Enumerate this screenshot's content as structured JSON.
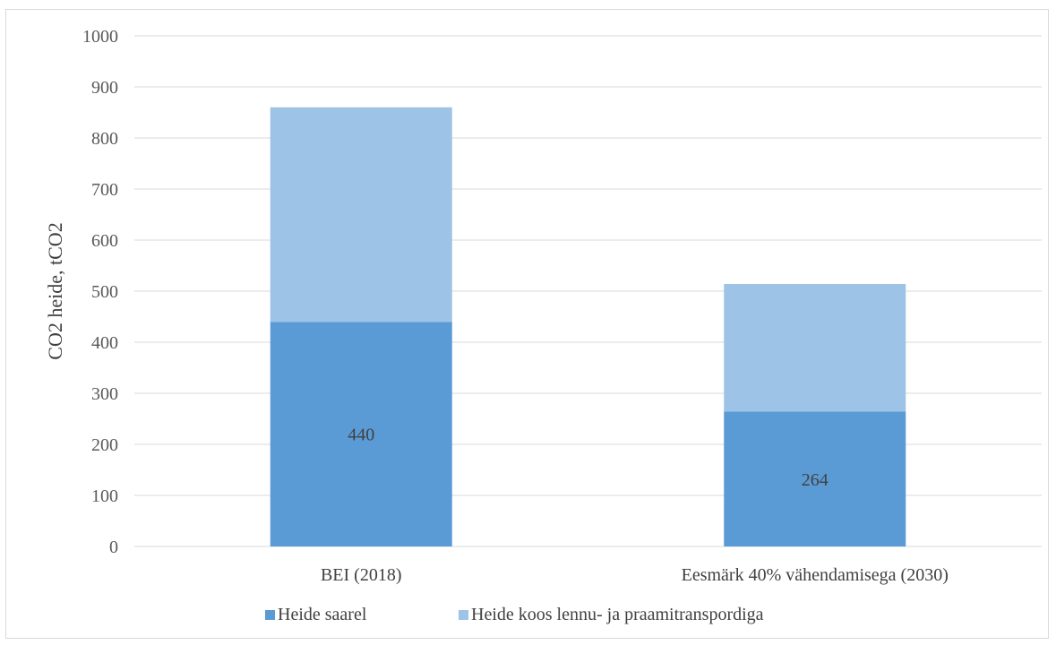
{
  "chart_data": {
    "type": "bar",
    "stacked": true,
    "categories": [
      "BEI (2018)",
      "Eesmärk 40% vähendamisega (2030)"
    ],
    "series": [
      {
        "name": "Heide saarel",
        "values": [
          440,
          264
        ],
        "color": "#5b9bd5",
        "labels": [
          "440",
          "264"
        ]
      },
      {
        "name": "Heide koos lennu- ja praamitranspordiga",
        "values": [
          420,
          250
        ],
        "color": "#9dc3e6"
      }
    ],
    "ylabel": "CO2 heide,  tCO2",
    "ylim": [
      0,
      1000
    ],
    "yticks": [
      0,
      100,
      200,
      300,
      400,
      500,
      600,
      700,
      800,
      900,
      1000
    ],
    "grid": true,
    "legend": "bottom"
  }
}
